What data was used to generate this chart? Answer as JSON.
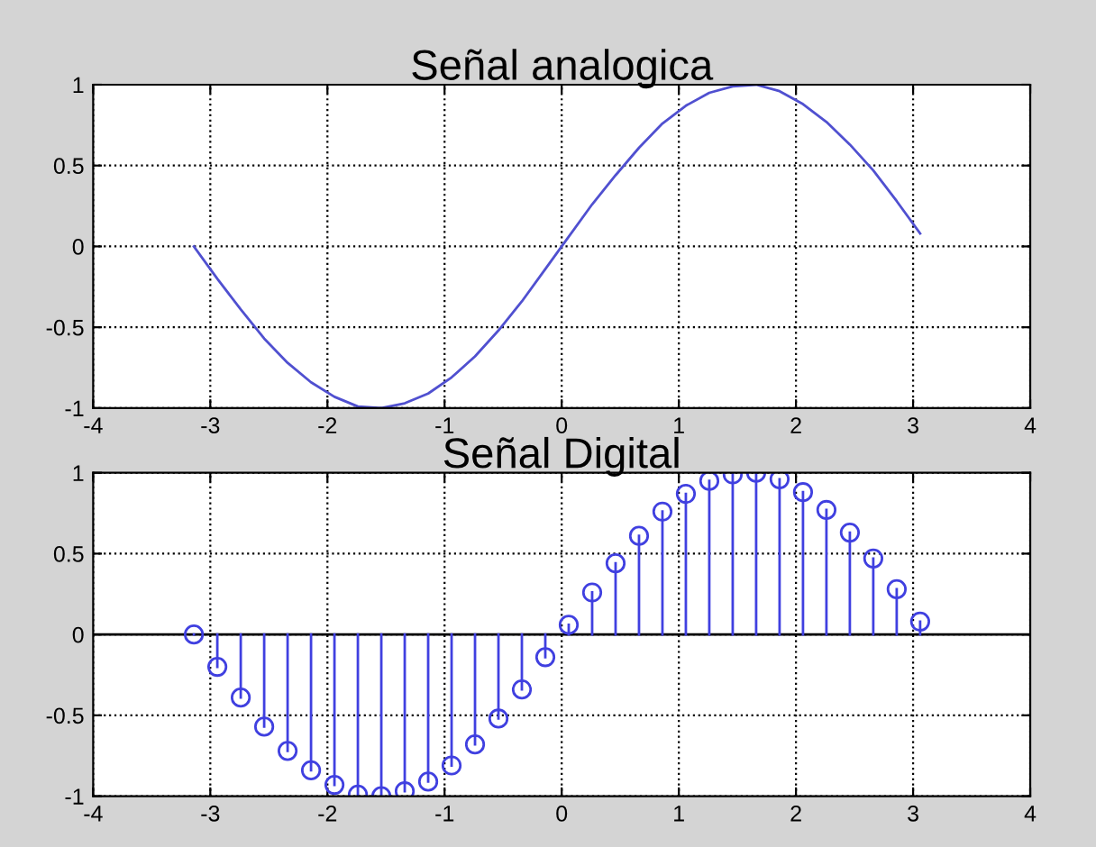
{
  "chart_data": [
    {
      "type": "line",
      "title": "Señal analogica",
      "xlim": [
        -4,
        4
      ],
      "xticks": [
        -4,
        -3,
        -2,
        -1,
        0,
        1,
        2,
        3,
        4
      ],
      "ylim": [
        -1,
        1
      ],
      "yticks": [
        -1,
        -0.5,
        0,
        0.5,
        1
      ],
      "grid": true,
      "marker": "none",
      "line_style": "solid",
      "series": [
        {
          "color": "#5050d0",
          "x": [
            -3.14,
            -2.94,
            -2.74,
            -2.54,
            -2.34,
            -2.14,
            -1.94,
            -1.74,
            -1.54,
            -1.34,
            -1.14,
            -0.94,
            -0.74,
            -0.54,
            -0.34,
            -0.14,
            0.06,
            0.26,
            0.46,
            0.66,
            0.86,
            1.06,
            1.26,
            1.46,
            1.66,
            1.86,
            2.06,
            2.26,
            2.46,
            2.66,
            2.86,
            3.06
          ],
          "values": [
            0,
            -0.2,
            -0.39,
            -0.57,
            -0.72,
            -0.84,
            -0.93,
            -0.99,
            -1,
            -0.97,
            -0.91,
            -0.81,
            -0.68,
            -0.52,
            -0.34,
            -0.14,
            0.06,
            0.26,
            0.44,
            0.61,
            0.76,
            0.87,
            0.95,
            0.99,
            1,
            0.96,
            0.88,
            0.77,
            0.63,
            0.47,
            0.28,
            0.08
          ]
        }
      ]
    },
    {
      "type": "lollipop",
      "title": "Señal Digital",
      "xlim": [
        -4,
        4
      ],
      "xticks": [
        -4,
        -3,
        -2,
        -1,
        0,
        1,
        2,
        3,
        4
      ],
      "ylim": [
        -1,
        1
      ],
      "yticks": [
        -1,
        -0.5,
        0,
        0.5,
        1
      ],
      "grid": true,
      "marker": "circle",
      "series": [
        {
          "color": "#4040e0",
          "x": [
            -3.14,
            -2.94,
            -2.74,
            -2.54,
            -2.34,
            -2.14,
            -1.94,
            -1.74,
            -1.54,
            -1.34,
            -1.14,
            -0.94,
            -0.74,
            -0.54,
            -0.34,
            -0.14,
            0.06,
            0.26,
            0.46,
            0.66,
            0.86,
            1.06,
            1.26,
            1.46,
            1.66,
            1.86,
            2.06,
            2.26,
            2.46,
            2.66,
            2.86,
            3.06
          ],
          "values": [
            0,
            -0.2,
            -0.39,
            -0.57,
            -0.72,
            -0.84,
            -0.93,
            -0.99,
            -1,
            -0.97,
            -0.91,
            -0.81,
            -0.68,
            -0.52,
            -0.34,
            -0.14,
            0.06,
            0.26,
            0.44,
            0.61,
            0.76,
            0.87,
            0.95,
            0.99,
            1,
            0.96,
            0.88,
            0.77,
            0.63,
            0.47,
            0.28,
            0.08
          ]
        }
      ]
    }
  ]
}
